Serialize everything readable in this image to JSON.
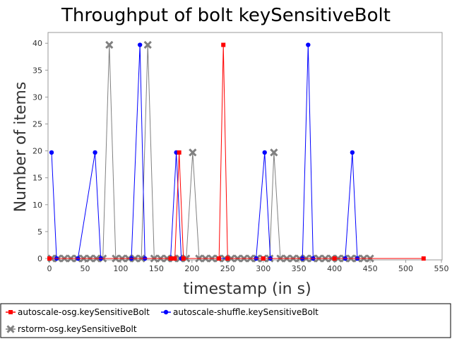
{
  "chart_data": {
    "type": "line",
    "title": "Throughput of bolt keySensitiveBolt",
    "xlabel": "timestamp (in s)",
    "ylabel": "Number of items",
    "xlim": [
      0,
      550
    ],
    "ylim": [
      0,
      42
    ],
    "xticks": [
      0,
      50,
      100,
      150,
      200,
      250,
      300,
      350,
      400,
      450,
      500,
      550
    ],
    "yticks": [
      0,
      5,
      10,
      15,
      20,
      25,
      30,
      35,
      40
    ],
    "grid": false,
    "legend_position": "bottom",
    "series": [
      {
        "name": "autoscale-osg.keySensitiveBolt",
        "color": "#ff0000",
        "marker": "square",
        "points": [
          [
            0,
            0
          ],
          [
            170,
            0
          ],
          [
            176,
            0
          ],
          [
            182,
            19.7
          ],
          [
            188,
            0
          ],
          [
            238,
            0
          ],
          [
            244,
            39.7
          ],
          [
            250,
            0
          ],
          [
            300,
            0
          ],
          [
            400,
            0
          ],
          [
            525,
            0
          ]
        ]
      },
      {
        "name": "autoscale-shuffle.keySensitiveBolt",
        "color": "#0000ff",
        "marker": "circle",
        "points": [
          [
            3,
            19.7
          ],
          [
            10,
            0
          ],
          [
            40,
            0
          ],
          [
            64,
            19.7
          ],
          [
            72,
            0
          ],
          [
            115,
            0
          ],
          [
            127,
            39.7
          ],
          [
            134,
            0
          ],
          [
            170,
            0
          ],
          [
            178,
            19.7
          ],
          [
            185,
            0
          ],
          [
            290,
            0
          ],
          [
            302,
            19.7
          ],
          [
            310,
            0
          ],
          [
            355,
            0
          ],
          [
            363,
            39.7
          ],
          [
            370,
            0
          ],
          [
            415,
            0
          ],
          [
            425,
            19.7
          ],
          [
            432,
            0
          ]
        ]
      },
      {
        "name": "rstorm-osg.keySensitiveBolt",
        "color": "#808080",
        "marker": "x",
        "points": [
          [
            3,
            0
          ],
          [
            12,
            0
          ],
          [
            21,
            0
          ],
          [
            30,
            0
          ],
          [
            39,
            0
          ],
          [
            48,
            0
          ],
          [
            57,
            0
          ],
          [
            66,
            0
          ],
          [
            75,
            0
          ],
          [
            84,
            39.7
          ],
          [
            93,
            0
          ],
          [
            102,
            0
          ],
          [
            111,
            0
          ],
          [
            120,
            0
          ],
          [
            129,
            0
          ],
          [
            138,
            39.7
          ],
          [
            147,
            0
          ],
          [
            156,
            0
          ],
          [
            165,
            0
          ],
          [
            174,
            0
          ],
          [
            183,
            0
          ],
          [
            192,
            0
          ],
          [
            201,
            19.7
          ],
          [
            210,
            0
          ],
          [
            219,
            0
          ],
          [
            228,
            0
          ],
          [
            237,
            0
          ],
          [
            246,
            0
          ],
          [
            255,
            0
          ],
          [
            264,
            0
          ],
          [
            273,
            0
          ],
          [
            282,
            0
          ],
          [
            291,
            0
          ],
          [
            300,
            0
          ],
          [
            309,
            0
          ],
          [
            315,
            19.7
          ],
          [
            324,
            0
          ],
          [
            333,
            0
          ],
          [
            342,
            0
          ],
          [
            351,
            0
          ],
          [
            360,
            0
          ],
          [
            369,
            0
          ],
          [
            378,
            0
          ],
          [
            387,
            0
          ],
          [
            396,
            0
          ],
          [
            405,
            0
          ],
          [
            414,
            0
          ],
          [
            423,
            0
          ],
          [
            432,
            0
          ],
          [
            441,
            0
          ],
          [
            450,
            0
          ]
        ]
      }
    ]
  }
}
